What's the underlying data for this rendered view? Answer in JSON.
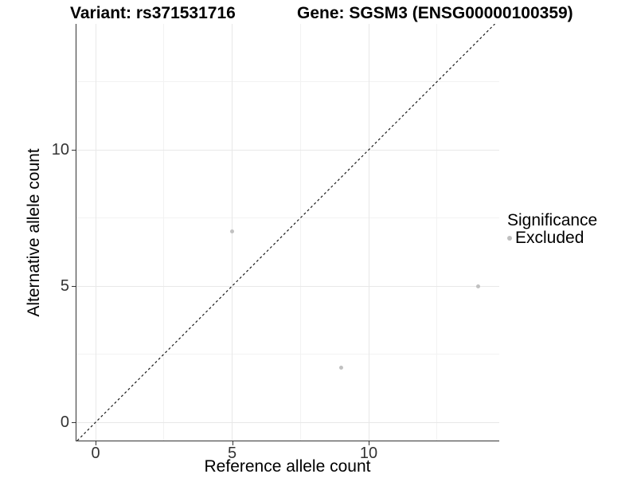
{
  "chart_data": {
    "type": "scatter",
    "titles": {
      "left": "Variant: rs371531716",
      "right": "Gene: SGSM3 (ENSG00000100359)"
    },
    "xlabel": "Reference allele count",
    "ylabel": "Alternative allele count",
    "xlim": [
      -0.73,
      14.78
    ],
    "ylim": [
      -0.67,
      14.62
    ],
    "x_ticks": [
      0,
      5,
      10
    ],
    "y_ticks": [
      0,
      5,
      10
    ],
    "x_minor_ticks": [
      2.5,
      7.5,
      12.5
    ],
    "y_minor_ticks": [
      2.5,
      7.5,
      12.5
    ],
    "grid": true,
    "identity_line": {
      "slope": 1,
      "intercept": 0,
      "style": "dashed",
      "color": "#1a1a1a"
    },
    "series": [
      {
        "name": "Excluded",
        "color": "#c1c1c1",
        "points": [
          {
            "x": 5,
            "y": 7
          },
          {
            "x": 9,
            "y": 2
          },
          {
            "x": 14,
            "y": 5
          }
        ]
      }
    ],
    "legend": {
      "title": "Significance",
      "position": "right",
      "items": [
        {
          "label": "Excluded",
          "color": "#bfbfbf"
        }
      ]
    },
    "colors": {
      "grid_major": "#e8e8e8",
      "grid_minor": "#f2f2f2",
      "axis_line": "#333333"
    }
  }
}
